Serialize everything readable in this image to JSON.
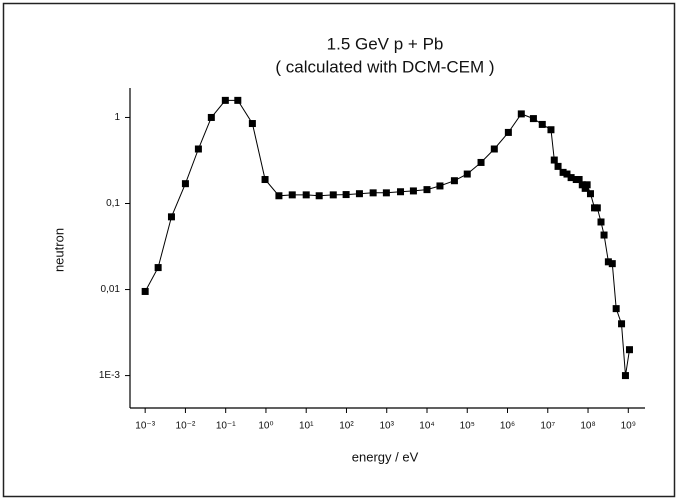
{
  "chart_data": {
    "type": "line",
    "title": "1.5 GeV p + Pb",
    "subtitle": "( calculated with DCM-CEM )",
    "x_label": "energy / eV",
    "y_label": "neutron",
    "x_log": true,
    "y_log": true,
    "color": "#000000",
    "x": [
      0.001,
      0.0021,
      0.0045,
      0.01,
      0.021,
      0.044,
      0.098,
      0.2,
      0.46,
      0.95,
      2.1,
      4.5,
      10,
      21,
      47,
      98,
      210,
      460,
      980,
      2200,
      4600,
      10000,
      21000,
      48000,
      100000,
      220000,
      470000,
      1050000,
      2200000,
      4400000,
      7300000,
      12000000,
      14500000,
      18000000,
      24000000,
      30000000,
      38000000,
      51000000,
      60000000,
      72000000,
      85000000,
      95000000,
      115000000,
      145000000,
      170000000,
      210000000,
      250000000,
      320000000,
      400000000,
      500000000,
      680000000,
      850000000,
      1070000000
    ],
    "values": [
      0.0095,
      0.018,
      0.07,
      0.17,
      0.43,
      1.0,
      1.58,
      1.58,
      0.85,
      0.19,
      0.123,
      0.126,
      0.126,
      0.123,
      0.126,
      0.127,
      0.13,
      0.133,
      0.133,
      0.137,
      0.14,
      0.145,
      0.16,
      0.184,
      0.22,
      0.3,
      0.43,
      0.67,
      1.1,
      0.97,
      0.83,
      0.72,
      0.32,
      0.27,
      0.23,
      0.22,
      0.2,
      0.19,
      0.19,
      0.165,
      0.15,
      0.165,
      0.13,
      0.089,
      0.089,
      0.061,
      0.043,
      0.021,
      0.02,
      0.006,
      0.004,
      0.001,
      0.002
    ],
    "xlim": [
      0.00042,
      2600000000
    ],
    "ylim": [
      0.00042,
      2.2
    ],
    "xticks": [
      {
        "value": 0.001,
        "label": "10⁻³"
      },
      {
        "value": 0.01,
        "label": "10⁻²"
      },
      {
        "value": 0.1,
        "label": "10⁻¹"
      },
      {
        "value": 1,
        "label": "10⁰"
      },
      {
        "value": 10,
        "label": "10¹"
      },
      {
        "value": 100,
        "label": "10²"
      },
      {
        "value": 1000,
        "label": "10³"
      },
      {
        "value": 10000,
        "label": "10⁴"
      },
      {
        "value": 100000,
        "label": "10⁵"
      },
      {
        "value": 1000000,
        "label": "10⁶"
      },
      {
        "value": 10000000,
        "label": "10⁷"
      },
      {
        "value": 100000000,
        "label": "10⁸"
      },
      {
        "value": 1000000000,
        "label": "10⁹"
      }
    ],
    "yticks": [
      {
        "value": 0.001,
        "label": "1E-3"
      },
      {
        "value": 0.01,
        "label": "0,01"
      },
      {
        "value": 0.1,
        "label": "0,1"
      },
      1
    ]
  }
}
